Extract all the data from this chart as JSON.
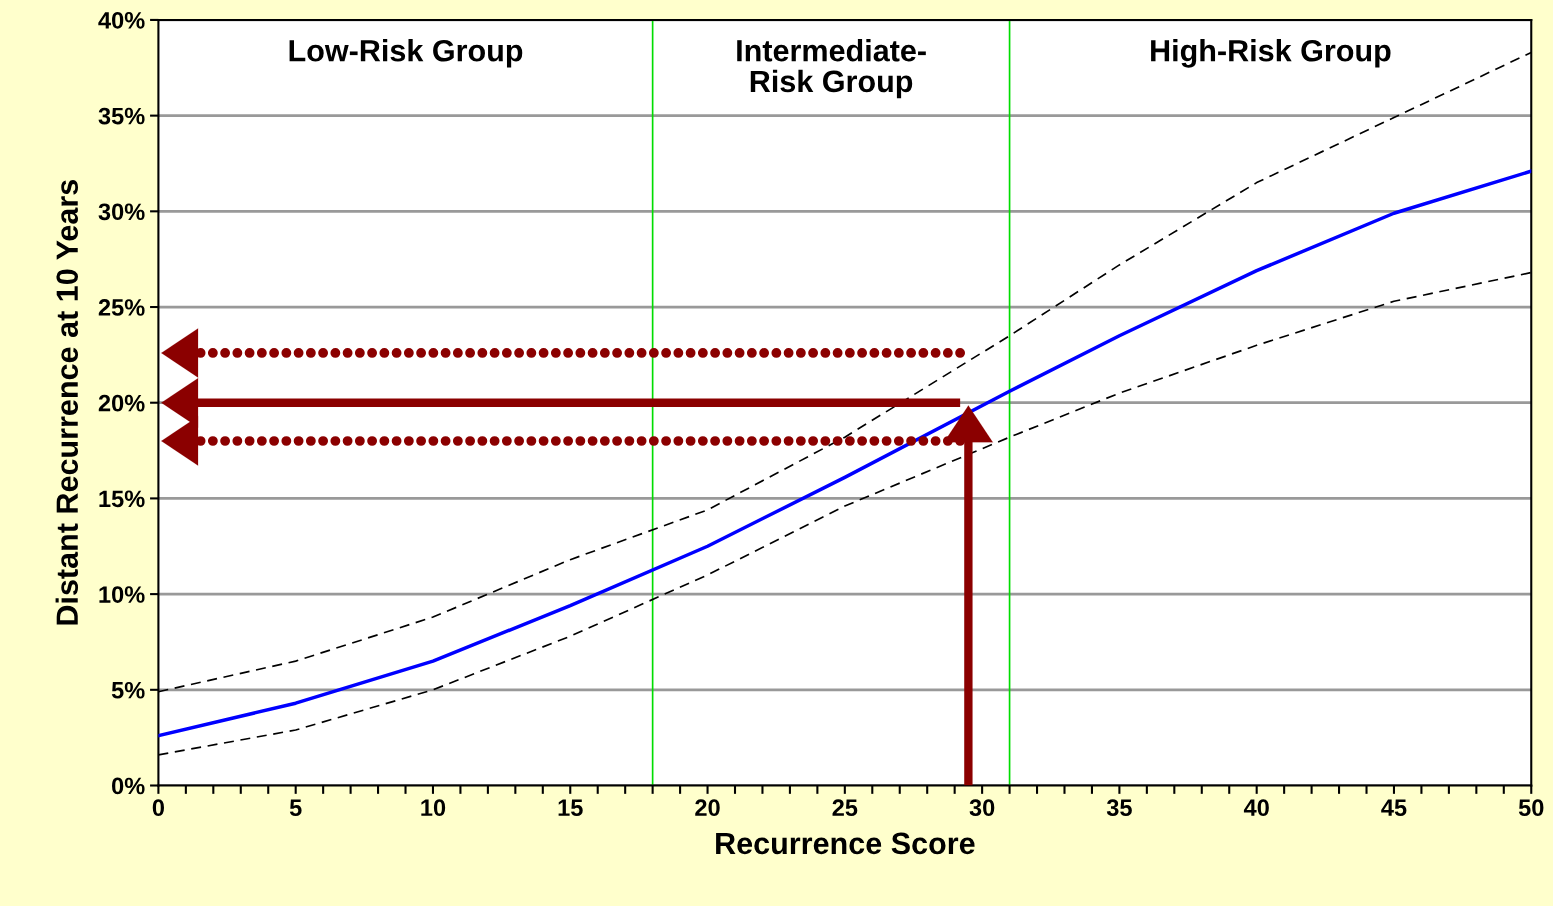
{
  "chart_data": {
    "type": "line",
    "xlabel": "Recurrence Score",
    "ylabel": "Distant Recurrence at 10 Years",
    "x": [
      0,
      5,
      10,
      15,
      20,
      25,
      31,
      35,
      40,
      45,
      50
    ],
    "series": [
      {
        "color": "#0000ff",
        "line_style": "solid",
        "values": [
          2.6,
          4.3,
          6.5,
          9.4,
          12.5,
          16.1,
          20.6,
          23.5,
          26.9,
          29.9,
          32.1
        ]
      },
      {
        "color": "#000000",
        "line_style": "dashed",
        "values": [
          4.9,
          6.5,
          8.8,
          11.8,
          14.4,
          18.2,
          23.5,
          27.2,
          31.5,
          34.9,
          38.3
        ]
      },
      {
        "color": "#000000",
        "line_style": "dashed",
        "values": [
          1.6,
          2.9,
          5.0,
          7.8,
          11.0,
          14.6,
          18.2,
          20.5,
          23.0,
          25.3,
          26.8
        ]
      }
    ],
    "xlim": [
      0,
      50
    ],
    "ylim": [
      0,
      40
    ],
    "xticks": [
      0,
      {
        "value": 1,
        "label": null
      },
      {
        "value": 2,
        "label": null
      },
      {
        "value": 3,
        "label": null
      },
      {
        "value": 4,
        "label": null
      },
      5,
      {
        "value": 6,
        "label": null
      },
      {
        "value": 7,
        "label": null
      },
      {
        "value": 8,
        "label": null
      },
      {
        "value": 9,
        "label": null
      },
      10,
      {
        "value": 11,
        "label": null
      },
      {
        "value": 12,
        "label": null
      },
      {
        "value": 13,
        "label": null
      },
      {
        "value": 14,
        "label": null
      },
      15,
      {
        "value": 16,
        "label": null
      },
      {
        "value": 17,
        "label": null
      },
      {
        "value": 18,
        "label": null
      },
      {
        "value": 19,
        "label": null
      },
      20,
      {
        "value": 21,
        "label": null
      },
      {
        "value": 22,
        "label": null
      },
      {
        "value": 23,
        "label": null
      },
      {
        "value": 24,
        "label": null
      },
      25,
      {
        "value": 26,
        "label": null
      },
      {
        "value": 27,
        "label": null
      },
      {
        "value": 28,
        "label": null
      },
      {
        "value": 29,
        "label": null
      },
      30,
      {
        "value": 31,
        "label": null
      },
      {
        "value": 32,
        "label": null
      },
      {
        "value": 33,
        "label": null
      },
      {
        "value": 34,
        "label": null
      },
      35,
      {
        "value": 36,
        "label": null
      },
      {
        "value": 37,
        "label": null
      },
      {
        "value": 38,
        "label": null
      },
      {
        "value": 39,
        "label": null
      },
      40,
      {
        "value": 41,
        "label": null
      },
      {
        "value": 42,
        "label": null
      },
      {
        "value": 43,
        "label": null
      },
      {
        "value": 44,
        "label": null
      },
      45,
      {
        "value": 46,
        "label": null
      },
      {
        "value": 47,
        "label": null
      },
      {
        "value": 48,
        "label": null
      },
      {
        "value": 49,
        "label": null
      },
      50
    ],
    "yticks": [
      {
        "value": 0,
        "label": "0%"
      },
      {
        "value": 5,
        "label": "5%"
      },
      {
        "value": 10,
        "label": "10%"
      },
      {
        "value": 15,
        "label": "15%"
      },
      {
        "value": 20,
        "label": "20%"
      },
      {
        "value": 25,
        "label": "25%"
      },
      {
        "value": 30,
        "label": "30%"
      },
      {
        "value": 35,
        "label": "35%"
      },
      {
        "value": 40,
        "label": "40%"
      }
    ],
    "grid": "y",
    "marker": "none",
    "legend": false,
    "annotations": [
      "Low-Risk Group",
      "Intermediate-\nRisk Group",
      "High-Risk Group"
    ],
    "ref_lines": [
      {
        "axis": "x",
        "value": 18,
        "color": "#00dd00",
        "line_style": "solid"
      },
      {
        "axis": "x",
        "value": 31,
        "color": "#00dd00",
        "line_style": "solid"
      },
      {
        "axis": "x",
        "value": 29.5,
        "color": "#8b0000",
        "line_style": "solid"
      },
      {
        "axis": "y",
        "value": 22.6,
        "color": "#8b0000",
        "line_style": "dotted"
      },
      {
        "axis": "y",
        "value": 20,
        "color": "#8b0000",
        "line_style": "solid"
      },
      {
        "axis": "y",
        "value": 18,
        "color": "#8b0000",
        "line_style": "dotted"
      }
    ]
  }
}
